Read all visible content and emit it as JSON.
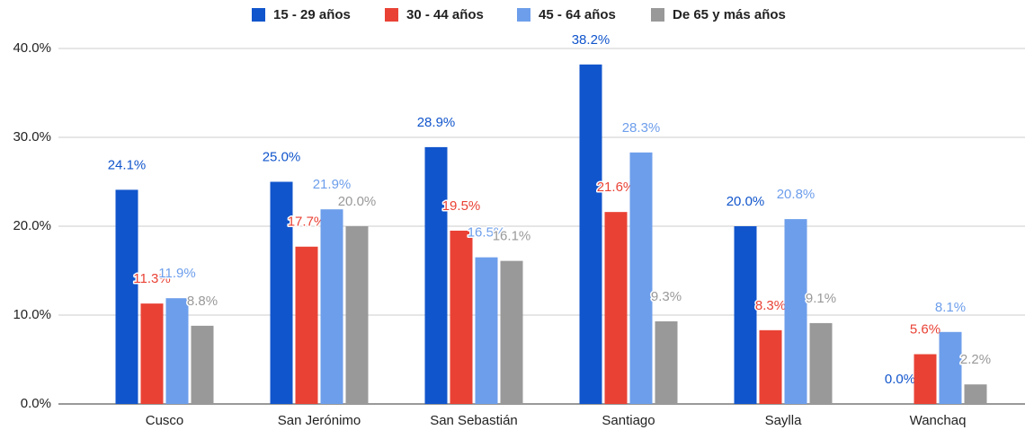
{
  "chart_data": {
    "type": "bar",
    "categories": [
      "Cusco",
      "San Jerónimo",
      "San Sebastián",
      "Santiago",
      "Saylla",
      "Wanchaq"
    ],
    "series": [
      {
        "name": "15 - 29 años",
        "color": "#1155cc",
        "values": [
          24.1,
          25.0,
          28.9,
          38.2,
          20.0,
          0.0
        ],
        "value_labels": [
          "24.1%",
          "25.0%",
          "28.9%",
          "38.2%",
          "20.0%",
          "0.0%"
        ]
      },
      {
        "name": "30 - 44 años",
        "color": "#e94235",
        "values": [
          11.3,
          17.7,
          19.5,
          21.6,
          8.3,
          5.6
        ],
        "value_labels": [
          "11.3%",
          "17.7%",
          "19.5%",
          "21.6%",
          "8.3%",
          "5.6%"
        ]
      },
      {
        "name": "45 - 64 años",
        "color": "#6d9eeb",
        "values": [
          11.9,
          21.9,
          16.5,
          28.3,
          20.8,
          8.1
        ],
        "value_labels": [
          "11.9%",
          "21.9%",
          "16.5%",
          "28.3%",
          "20.8%",
          "8.1%"
        ]
      },
      {
        "name": "De 65 y más años",
        "color": "#999999",
        "values": [
          8.8,
          20.0,
          16.1,
          9.3,
          9.1,
          2.2
        ],
        "value_labels": [
          "8.8%",
          "20.0%",
          "16.1%",
          "9.3%",
          "9.1%",
          "2.2%"
        ]
      }
    ],
    "ylim": [
      0,
      40
    ],
    "yticks": [
      {
        "value": 0,
        "label": "0.0%"
      },
      {
        "value": 10,
        "label": "10.0%"
      },
      {
        "value": 20,
        "label": "20.0%"
      },
      {
        "value": 30,
        "label": "30.0%"
      },
      {
        "value": 40,
        "label": "40.0%"
      }
    ],
    "grid": true,
    "legend": "top"
  }
}
